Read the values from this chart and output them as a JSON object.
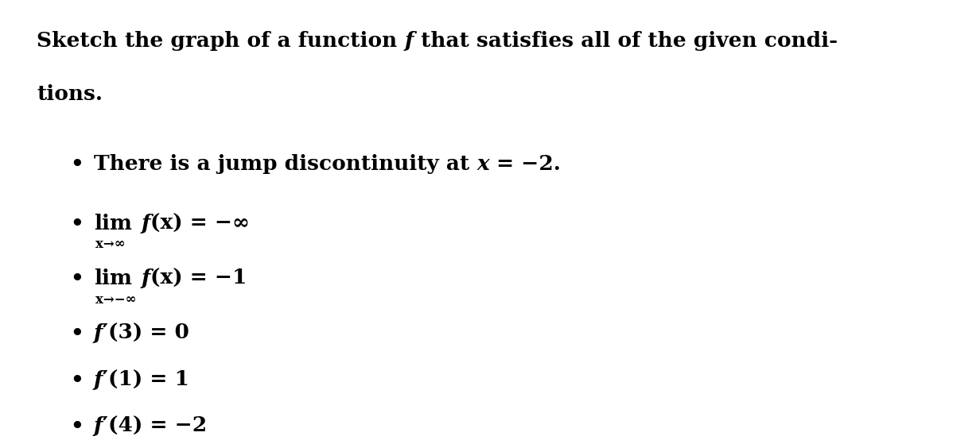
{
  "background_color": "#ffffff",
  "text_color": "#000000",
  "font_size_title": 19,
  "font_size_bullet": 19,
  "font_size_sub": 12,
  "title_line1_parts": [
    {
      "text": "Sketch the graph of a function ",
      "style": "normal"
    },
    {
      "text": "f",
      "style": "italic"
    },
    {
      "text": " that satisfies all of the given condi-",
      "style": "normal"
    }
  ],
  "title_line2": "tions.",
  "bullet_char": "•",
  "bullets": [
    {
      "parts": [
        {
          "text": "There is a jump discontinuity at ",
          "style": "normal"
        },
        {
          "text": "x",
          "style": "italic"
        },
        {
          "text": " = −2.",
          "style": "normal"
        }
      ]
    },
    {
      "lim": true,
      "lim_sub": "x→∞",
      "func_parts": [
        {
          "text": "f",
          "style": "italic"
        },
        {
          "text": "(x) = −∞",
          "style": "normal"
        }
      ]
    },
    {
      "lim": true,
      "lim_sub": "x→−∞",
      "func_parts": [
        {
          "text": "f",
          "style": "italic"
        },
        {
          "text": "(x) = −1",
          "style": "normal"
        }
      ]
    },
    {
      "parts": [
        {
          "text": "f",
          "style": "italic"
        },
        {
          "text": "′(3) = 0",
          "style": "normal"
        }
      ]
    },
    {
      "parts": [
        {
          "text": "f",
          "style": "italic"
        },
        {
          "text": "′(1) = 1",
          "style": "normal"
        }
      ]
    },
    {
      "parts": [
        {
          "text": "f",
          "style": "italic"
        },
        {
          "text": "′(4) = −2",
          "style": "normal"
        }
      ]
    }
  ]
}
